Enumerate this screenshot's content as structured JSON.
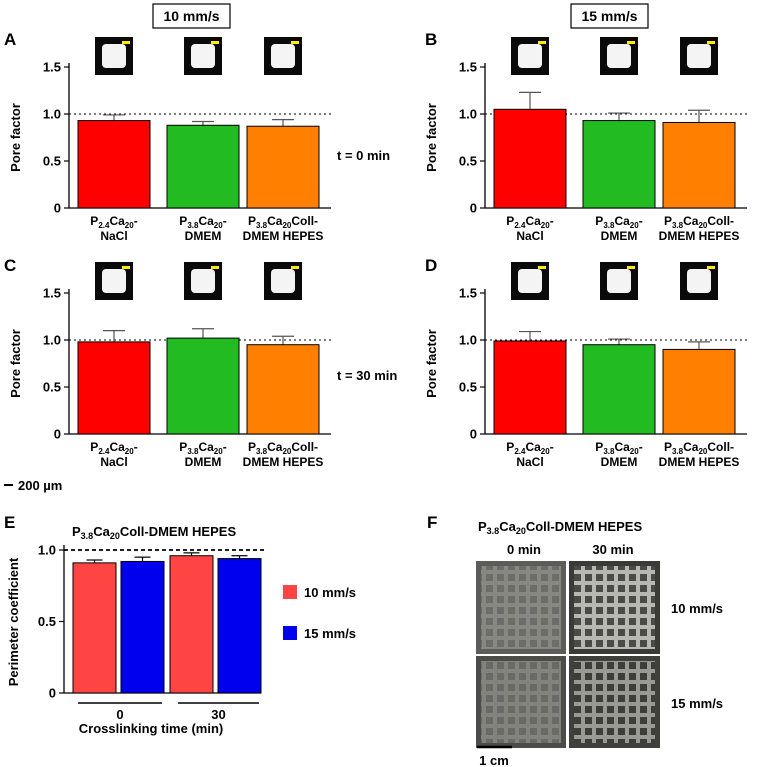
{
  "panels": [
    {
      "letter": "A",
      "speed_label": "10 mm/s",
      "time_label": "",
      "ylabel": "Pore factor",
      "yticks": [
        "0",
        "0.5",
        "1.0",
        "1.5"
      ],
      "categories": [
        {
          "line1": [
            "P",
            "2.4",
            "Ca",
            "20",
            "-"
          ],
          "line2": "NaCl"
        },
        {
          "line1": [
            "P",
            "3.8",
            "Ca",
            "20",
            "-"
          ],
          "line2": "DMEM"
        },
        {
          "line1": [
            "P",
            "3.8",
            "Ca",
            "20",
            "Coll-"
          ],
          "line2": "DMEM HEPES"
        }
      ]
    },
    {
      "letter": "B",
      "speed_label": "15 mm/s",
      "time_label": "t = 0 min",
      "ylabel": "Pore factor",
      "yticks": [
        "0",
        "0.5",
        "1.0",
        "1.5"
      ],
      "categories": [
        {
          "line1": [
            "P",
            "2.4",
            "Ca",
            "20",
            "-"
          ],
          "line2": "NaCl"
        },
        {
          "line1": [
            "P",
            "3.8",
            "Ca",
            "20",
            "-"
          ],
          "line2": "DMEM"
        },
        {
          "line1": [
            "P",
            "3.8",
            "Ca",
            "20",
            "Coll-"
          ],
          "line2": "DMEM HEPES"
        }
      ]
    },
    {
      "letter": "C",
      "speed_label": "",
      "time_label": "",
      "ylabel": "Pore factor",
      "yticks": [
        "0",
        "0.5",
        "1.0",
        "1.5"
      ],
      "categories": [
        {
          "line1": [
            "P",
            "2.4",
            "Ca",
            "20",
            "-"
          ],
          "line2": "NaCl"
        },
        {
          "line1": [
            "P",
            "3.8",
            "Ca",
            "20",
            "-"
          ],
          "line2": "DMEM"
        },
        {
          "line1": [
            "P",
            "3.8",
            "Ca",
            "20",
            "Coll-"
          ],
          "line2": "DMEM HEPES"
        }
      ]
    },
    {
      "letter": "D",
      "speed_label": "",
      "time_label": "t = 30 min",
      "ylabel": "Pore factor",
      "yticks": [
        "0",
        "0.5",
        "1.0",
        "1.5"
      ],
      "categories": [
        {
          "line1": [
            "P",
            "2.4",
            "Ca",
            "20",
            "-"
          ],
          "line2": "NaCl"
        },
        {
          "line1": [
            "P",
            "3.8",
            "Ca",
            "20",
            "-"
          ],
          "line2": "DMEM"
        },
        {
          "line1": [
            "P",
            "3.8",
            "Ca",
            "20",
            "Coll-"
          ],
          "line2": "DMEM HEPES"
        }
      ]
    },
    {
      "letter": "E",
      "ylabel": "Perimeter coefficient",
      "yticks": [
        "0",
        "0.5",
        "1.0"
      ],
      "title": [
        "P",
        "3.8",
        "Ca",
        "20",
        "Coll-DMEM HEPES"
      ],
      "xlabel": "Crosslinking time (min)",
      "xticks": [
        "0",
        "30"
      ],
      "legend": [
        "10 mm/s",
        "15 mm/s"
      ]
    },
    {
      "letter": "F",
      "title": [
        "P",
        "3.8",
        "Ca",
        "20",
        "Coll-DMEM HEPES"
      ],
      "col_labels": [
        "0 min",
        "30 min"
      ],
      "row_labels": [
        "10 mm/s",
        "15 mm/s"
      ],
      "scale_label": "1 cm"
    }
  ],
  "scale_bar_label": "200 µm",
  "colors": {
    "bar_red": "#ff0000",
    "bar_green": "#22bb22",
    "bar_orange": "#ff8000",
    "e_red": "#ff4444",
    "e_blue": "#0000ee",
    "scale_yellow": "#ffee00"
  },
  "chart_data": [
    {
      "panel": "A",
      "type": "bar",
      "ylabel": "Pore factor",
      "ylim": [
        0,
        1.5
      ],
      "reference_line": 1.0,
      "categories": [
        "P2.4Ca20-NaCl",
        "P3.8Ca20-DMEM",
        "P3.8Ca20Coll-DMEM HEPES"
      ],
      "values": [
        0.93,
        0.88,
        0.87
      ],
      "errors": [
        0.06,
        0.04,
        0.07
      ]
    },
    {
      "panel": "B",
      "type": "bar",
      "ylabel": "Pore factor",
      "ylim": [
        0,
        1.5
      ],
      "reference_line": 1.0,
      "categories": [
        "P2.4Ca20-NaCl",
        "P3.8Ca20-DMEM",
        "P3.8Ca20Coll-DMEM HEPES"
      ],
      "values": [
        1.05,
        0.93,
        0.91
      ],
      "errors": [
        0.18,
        0.08,
        0.13
      ]
    },
    {
      "panel": "C",
      "type": "bar",
      "ylabel": "Pore factor",
      "ylim": [
        0,
        1.5
      ],
      "reference_line": 1.0,
      "categories": [
        "P2.4Ca20-NaCl",
        "P3.8Ca20-DMEM",
        "P3.8Ca20Coll-DMEM HEPES"
      ],
      "values": [
        0.98,
        1.02,
        0.95
      ],
      "errors": [
        0.12,
        0.1,
        0.09
      ]
    },
    {
      "panel": "D",
      "type": "bar",
      "ylabel": "Pore factor",
      "ylim": [
        0,
        1.5
      ],
      "reference_line": 1.0,
      "categories": [
        "P2.4Ca20-NaCl",
        "P3.8Ca20-DMEM",
        "P3.8Ca20Coll-DMEM HEPES"
      ],
      "values": [
        0.99,
        0.95,
        0.9
      ],
      "errors": [
        0.1,
        0.06,
        0.08
      ]
    },
    {
      "panel": "E",
      "type": "bar",
      "ylabel": "Perimeter coefficient",
      "xlabel": "Crosslinking time (min)",
      "ylim": [
        0,
        1.0
      ],
      "reference_line": 1.0,
      "categories": [
        "0",
        "30"
      ],
      "series": [
        {
          "name": "10 mm/s",
          "values": [
            0.91,
            0.96
          ],
          "errors": [
            0.02,
            0.02
          ]
        },
        {
          "name": "15 mm/s",
          "values": [
            0.92,
            0.94
          ],
          "errors": [
            0.03,
            0.02
          ]
        }
      ]
    }
  ]
}
